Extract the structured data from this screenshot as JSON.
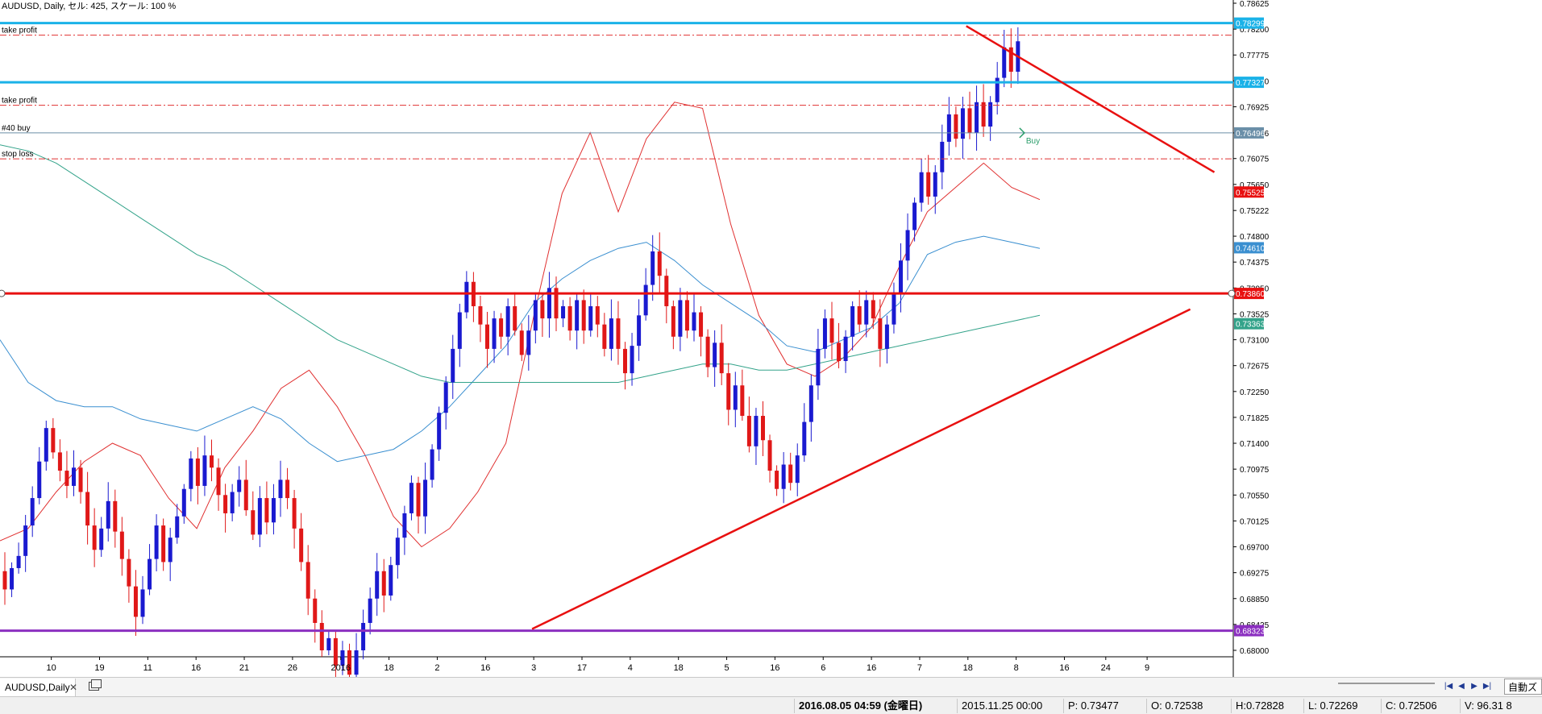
{
  "header": {
    "info": "AUDUSD, Daily, セル: 425, スケール: 100 %"
  },
  "chart_data": {
    "type": "candlestick",
    "symbol": "AUDUSD",
    "timeframe": "Daily",
    "ylim": [
      0.68,
      0.78625
    ],
    "grid": false,
    "y_ticks": [
      "0.78625",
      "0.78200",
      "0.77775",
      "0.77350",
      "0.76925",
      "0.76496",
      "0.76075",
      "0.75650",
      "0.75222",
      "0.74800",
      "0.74375",
      "0.73950",
      "0.73525",
      "0.73100",
      "0.72675",
      "0.72250",
      "0.71825",
      "0.71400",
      "0.70975",
      "0.70550",
      "0.70125",
      "0.69700",
      "0.69275",
      "0.68850",
      "0.68425",
      "0.68000"
    ],
    "x_ticks": [
      {
        "label": "10",
        "i": 3
      },
      {
        "label": "19",
        "i": 10
      },
      {
        "label": "11",
        "i": 17
      },
      {
        "label": "16",
        "i": 24
      },
      {
        "label": "21",
        "i": 31
      },
      {
        "label": "26",
        "i": 38
      },
      {
        "label": "2016",
        "i": 45
      },
      {
        "label": "18",
        "i": 52
      },
      {
        "label": "2",
        "i": 59
      },
      {
        "label": "16",
        "i": 66
      },
      {
        "label": "3",
        "i": 73
      },
      {
        "label": "17",
        "i": 80
      },
      {
        "label": "4",
        "i": 87
      },
      {
        "label": "18",
        "i": 94
      },
      {
        "label": "5",
        "i": 101
      },
      {
        "label": "16",
        "i": 108
      },
      {
        "label": "6",
        "i": 115
      },
      {
        "label": "16",
        "i": 122
      },
      {
        "label": "7",
        "i": 129
      },
      {
        "label": "18",
        "i": 136
      },
      {
        "label": "8",
        "i": 143
      },
      {
        "label": "16",
        "i": 150
      },
      {
        "label": "24",
        "i": 156
      },
      {
        "label": "9",
        "i": 162
      }
    ],
    "candles_anchor_price": 0.693,
    "candles_change": [
      -0.003,
      0.0035,
      0.002,
      0.005,
      0.0045,
      0.006,
      0.0055,
      -0.004,
      -0.003,
      -0.0025,
      0.003,
      -0.004,
      -0.0055,
      -0.004,
      0.0035,
      0.0045,
      -0.005,
      -0.0045,
      -0.0045,
      -0.005,
      0.0045,
      0.005,
      0.0055,
      -0.006,
      0.004,
      0.0035,
      0.0045,
      0.005,
      -0.0045,
      0.005,
      -0.002,
      -0.0045,
      -0.003,
      0.0035,
      0.002,
      -0.005,
      -0.004,
      0.006,
      -0.004,
      0.004,
      0.003,
      -0.003,
      -0.005,
      -0.0055,
      -0.006,
      -0.004,
      -0.0045,
      0.002,
      -0.0045,
      0.0025,
      -0.004,
      0.004,
      0.0045,
      0.004,
      0.0045,
      -0.004,
      0.005,
      0.0045,
      0.004,
      0.005,
      -0.0055,
      0.006,
      0.005,
      0.006,
      0.005,
      0.0055,
      0.006,
      0.005,
      -0.004,
      -0.003,
      -0.004,
      0.005,
      -0.003,
      0.005,
      -0.004,
      -0.004,
      0.004,
      0.005,
      -0.003,
      0.005,
      -0.005,
      0.002,
      -0.004,
      0.005,
      -0.005,
      0.004,
      -0.003,
      -0.004,
      0.005,
      -0.005,
      -0.004,
      0.0045,
      0.005,
      0.005,
      0.0055,
      -0.004,
      -0.005,
      -0.005,
      0.006,
      -0.005,
      0.003,
      -0.004,
      -0.005,
      0.004,
      -0.005,
      -0.006,
      0.004,
      -0.005,
      -0.005,
      0.005,
      -0.004,
      -0.005,
      -0.003,
      0.004,
      -0.003,
      0.0045,
      0.0055,
      0.006,
      0.006,
      0.005,
      -0.004,
      -0.003,
      0.004,
      0.005,
      -0.003,
      0.004,
      -0.003,
      -0.005,
      0.004,
      0.005,
      0.0055,
      0.005,
      0.0045,
      0.005,
      -0.004,
      0.004,
      0.005,
      0.0045,
      -0.004,
      0.005,
      -0.004,
      0.005,
      -0.004,
      0.004,
      0.004,
      0.005,
      -0.004,
      0.005
    ],
    "moving_averages": [
      {
        "color": "#e03030",
        "values": [
          0.698,
          0.7,
          0.706,
          0.711,
          0.714,
          0.712,
          0.705,
          0.7,
          0.71,
          0.716,
          0.723,
          0.726,
          0.72,
          0.712,
          0.702,
          0.697,
          0.7,
          0.706,
          0.714,
          0.735,
          0.755,
          0.765,
          0.752,
          0.764,
          0.77,
          0.769,
          0.75,
          0.735,
          0.727,
          0.725,
          0.728,
          0.733,
          0.743,
          0.752,
          0.756,
          0.76,
          0.756,
          0.754
        ]
      },
      {
        "color": "#3a8fd0",
        "values": [
          0.731,
          0.724,
          0.721,
          0.72,
          0.72,
          0.718,
          0.717,
          0.716,
          0.718,
          0.72,
          0.718,
          0.714,
          0.711,
          0.712,
          0.713,
          0.716,
          0.72,
          0.725,
          0.73,
          0.737,
          0.741,
          0.744,
          0.746,
          0.747,
          0.744,
          0.74,
          0.737,
          0.734,
          0.73,
          0.729,
          0.731,
          0.733,
          0.737,
          0.745,
          0.747,
          0.748,
          0.747,
          0.746
        ]
      },
      {
        "color": "#33a38a",
        "values": [
          0.763,
          0.762,
          0.76,
          0.757,
          0.754,
          0.751,
          0.748,
          0.745,
          0.743,
          0.74,
          0.737,
          0.734,
          0.731,
          0.729,
          0.727,
          0.725,
          0.724,
          0.724,
          0.724,
          0.724,
          0.724,
          0.724,
          0.724,
          0.725,
          0.726,
          0.727,
          0.727,
          0.726,
          0.726,
          0.727,
          0.728,
          0.729,
          0.73,
          0.731,
          0.732,
          0.733,
          0.734,
          0.735
        ]
      }
    ],
    "horizontal_lines": [
      {
        "price": 0.78299,
        "style": "solid-thick",
        "color": "#1ab2e8",
        "label": "",
        "tag": "0.78299"
      },
      {
        "price": 0.781,
        "style": "dashdot",
        "color": "#e03030",
        "label": "take profit",
        "tag": ""
      },
      {
        "price": 0.77327,
        "style": "solid-thick",
        "color": "#1ab2e8",
        "label": "",
        "tag": "0.77327"
      },
      {
        "price": 0.7695,
        "style": "dashdot",
        "color": "#e03030",
        "label": "take profit",
        "tag": ""
      },
      {
        "price": 0.76496,
        "style": "solid-thin",
        "color": "#6b8fa8",
        "label": "#40 buy",
        "tag": "0.76496"
      },
      {
        "price": 0.7607,
        "style": "dashdot",
        "color": "#e03030",
        "label": "stop loss",
        "tag": ""
      },
      {
        "price": 0.7386,
        "style": "solid-thick",
        "color": "#e81010",
        "label": "",
        "tag": "0.73860"
      },
      {
        "price": 0.68323,
        "style": "solid-thick",
        "color": "#8b2fc0",
        "label": "",
        "tag": "0.68323"
      }
    ],
    "trendlines": [
      {
        "x1": 139.5,
        "y1": 0.7825,
        "x2": 175.5,
        "y2": 0.7585,
        "color": "#e81010"
      },
      {
        "x1": 76.5,
        "y1": 0.6835,
        "x2": 172,
        "y2": 0.736,
        "color": "#e81010"
      }
    ],
    "price_tags": [
      {
        "value": "0.75525",
        "price": 0.75525,
        "color": "#e81010"
      },
      {
        "value": "0.74610",
        "price": 0.7461,
        "color": "#3a8fd0"
      },
      {
        "value": "0.73363",
        "price": 0.73363,
        "color": "#33a38a"
      }
    ],
    "trade_label": "Buy"
  },
  "tabbar": {
    "tab_label": "AUDUSD,Daily",
    "close_glyph": "✕",
    "zoom_label": "自動ズー"
  },
  "statusbar": {
    "datetime": "2016.08.05 04:59 (金曜日)",
    "bar_time": "2015.11.25 00:00",
    "open_hidden_label": "P: 0.73477",
    "o": "O: 0.72538",
    "h": "H:0.72828",
    "l": "L: 0.72269",
    "c": "C: 0.72506",
    "v": "V: 96.31 8"
  }
}
